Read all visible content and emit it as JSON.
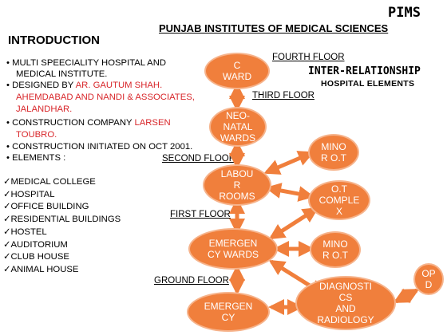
{
  "header": {
    "brand": "PIMS",
    "title": "PUNJAB INSTITUTES OF MEDICAL SCIENCES",
    "intro": "INTRODUCTION"
  },
  "bullets": [
    {
      "text": "MULTI SPEECIALITY HOSPITAL AND",
      "red": ""
    },
    {
      "text": "MEDICAL INSTITUTE.",
      "red": ""
    },
    {
      "text": "DESIGNED BY ",
      "red": "AR. GAUTUM SHAH."
    },
    {
      "text": "",
      "red": "AHEMDABAD AND NANDI & ASSOCIATES,"
    },
    {
      "text": "",
      "red": "JALANDHAR."
    },
    {
      "text": "CONSTRUCTION COMPANY ",
      "red": "LARSEN"
    },
    {
      "text": "",
      "red": "TOUBRO."
    },
    {
      "text": "CONSTRUCTION INITIATED  ON OCT 2001.",
      "red": ""
    },
    {
      "text": "ELEMENTS :",
      "red": ""
    }
  ],
  "elements": [
    "MEDICAL COLLEGE",
    "HOSPITAL",
    "OFFICE BUILDING",
    "RESIDENTIAL BUILDINGS",
    "HOSTEL",
    "AUDITORIUM",
    "CLUB HOUSE",
    "ANIMAL HOUSE"
  ],
  "floors": {
    "fourth": "FOURTH FLOOR",
    "third": "THIRD FLOOR",
    "second": "SECOND FLOOR",
    "first": "FIRST FLOOR",
    "ground": "GROUND FLOOR"
  },
  "relationship": {
    "title": "INTER-RELATIONSHIP",
    "subtitle": "HOSPITAL ELEMENTS"
  },
  "nodes": {
    "c_ward": [
      "C",
      "WARD"
    ],
    "neo_natal": [
      "NEO-",
      "NATAL",
      "WARDS"
    ],
    "minor_ot_top": [
      "MINO",
      "R O.T"
    ],
    "labour": [
      "LABOU",
      "R",
      "ROOMS"
    ],
    "ot_complex": [
      "O.T",
      "COMPLE",
      "X"
    ],
    "emergency_wards": [
      "EMERGEN",
      "CY WARDS"
    ],
    "minor_ot_mid": [
      "MINO",
      "R O.T"
    ],
    "opd": [
      "OP",
      "D"
    ],
    "emergency": [
      "EMERGEN",
      "CY"
    ],
    "diagnostics": [
      "DIAGNOSTI",
      "CS",
      "AND",
      "RADIOLOGY"
    ]
  },
  "colors": {
    "node_fill": "#f07f3c",
    "accent_red": "#d8262a"
  }
}
